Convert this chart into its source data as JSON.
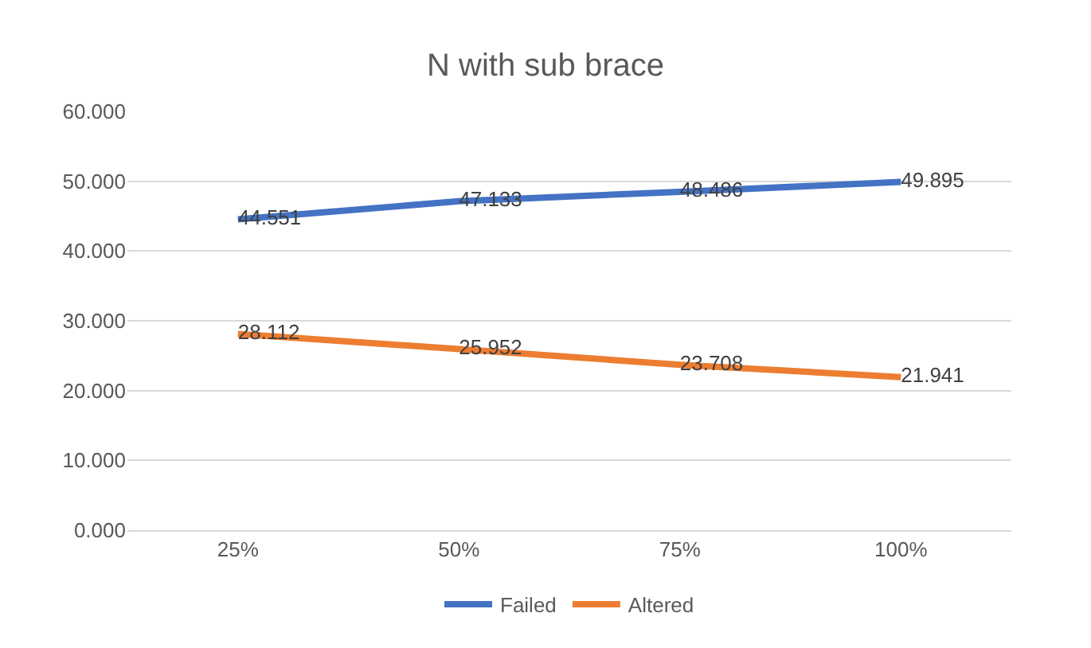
{
  "chart_data": {
    "type": "line",
    "title": "N with sub brace",
    "categories": [
      "25%",
      "50%",
      "75%",
      "100%"
    ],
    "series": [
      {
        "name": "Failed",
        "color": "#4472c4",
        "values": [
          44.551,
          47.133,
          48.486,
          49.895
        ]
      },
      {
        "name": "Altered",
        "color": "#ed7d31",
        "values": [
          28.112,
          25.952,
          23.708,
          21.941
        ]
      }
    ],
    "ylim": [
      0,
      60
    ],
    "yticks": [
      {
        "value": 0,
        "label": "0.000"
      },
      {
        "value": 10,
        "label": "10.000"
      },
      {
        "value": 20,
        "label": "20.000"
      },
      {
        "value": 30,
        "label": "30.000"
      },
      {
        "value": 40,
        "label": "40.000"
      },
      {
        "value": 50,
        "label": "50.000"
      },
      {
        "value": 60,
        "label": "60.000"
      }
    ],
    "grid": "y",
    "legend": "bottom",
    "data_labels": true,
    "marker": "none",
    "line_style": "solid"
  }
}
